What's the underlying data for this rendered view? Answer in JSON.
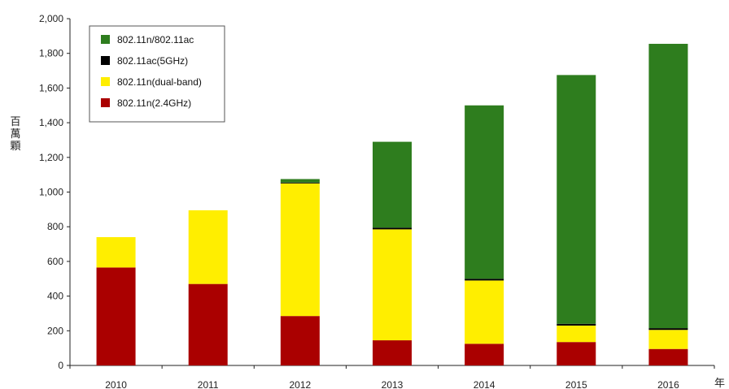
{
  "chart_data": {
    "type": "bar",
    "stacked": true,
    "categories": [
      "2010",
      "2011",
      "2012",
      "2013",
      "2014",
      "2015",
      "2016"
    ],
    "series": [
      {
        "name": "802.11n(2.4GHz)",
        "color": "#aa0000",
        "values": [
          565,
          470,
          285,
          145,
          125,
          135,
          95
        ]
      },
      {
        "name": "802.11n(dual-band)",
        "color": "#ffee00",
        "values": [
          175,
          425,
          765,
          640,
          365,
          95,
          110
        ]
      },
      {
        "name": "802.11ac(5GHz)",
        "color": "#000000",
        "values": [
          0,
          0,
          5,
          10,
          10,
          10,
          10
        ]
      },
      {
        "name": "802.11n/802.11ac",
        "color": "#2e7d1e",
        "values": [
          0,
          0,
          20,
          495,
          1000,
          1435,
          1640
        ]
      }
    ],
    "legend_order": [
      "802.11n/802.11ac",
      "802.11ac(5GHz)",
      "802.11n(dual-band)",
      "802.11n(2.4GHz)"
    ],
    "ylim": [
      0,
      2000
    ],
    "yticks": [
      "0",
      "200",
      "400",
      "600",
      "800",
      "1,000",
      "1,200",
      "1,400",
      "1,600",
      "1,800",
      "2,000"
    ],
    "ylabel": "百萬顆",
    "xlabel": "年",
    "legend_position": "top-left",
    "grid": false
  }
}
